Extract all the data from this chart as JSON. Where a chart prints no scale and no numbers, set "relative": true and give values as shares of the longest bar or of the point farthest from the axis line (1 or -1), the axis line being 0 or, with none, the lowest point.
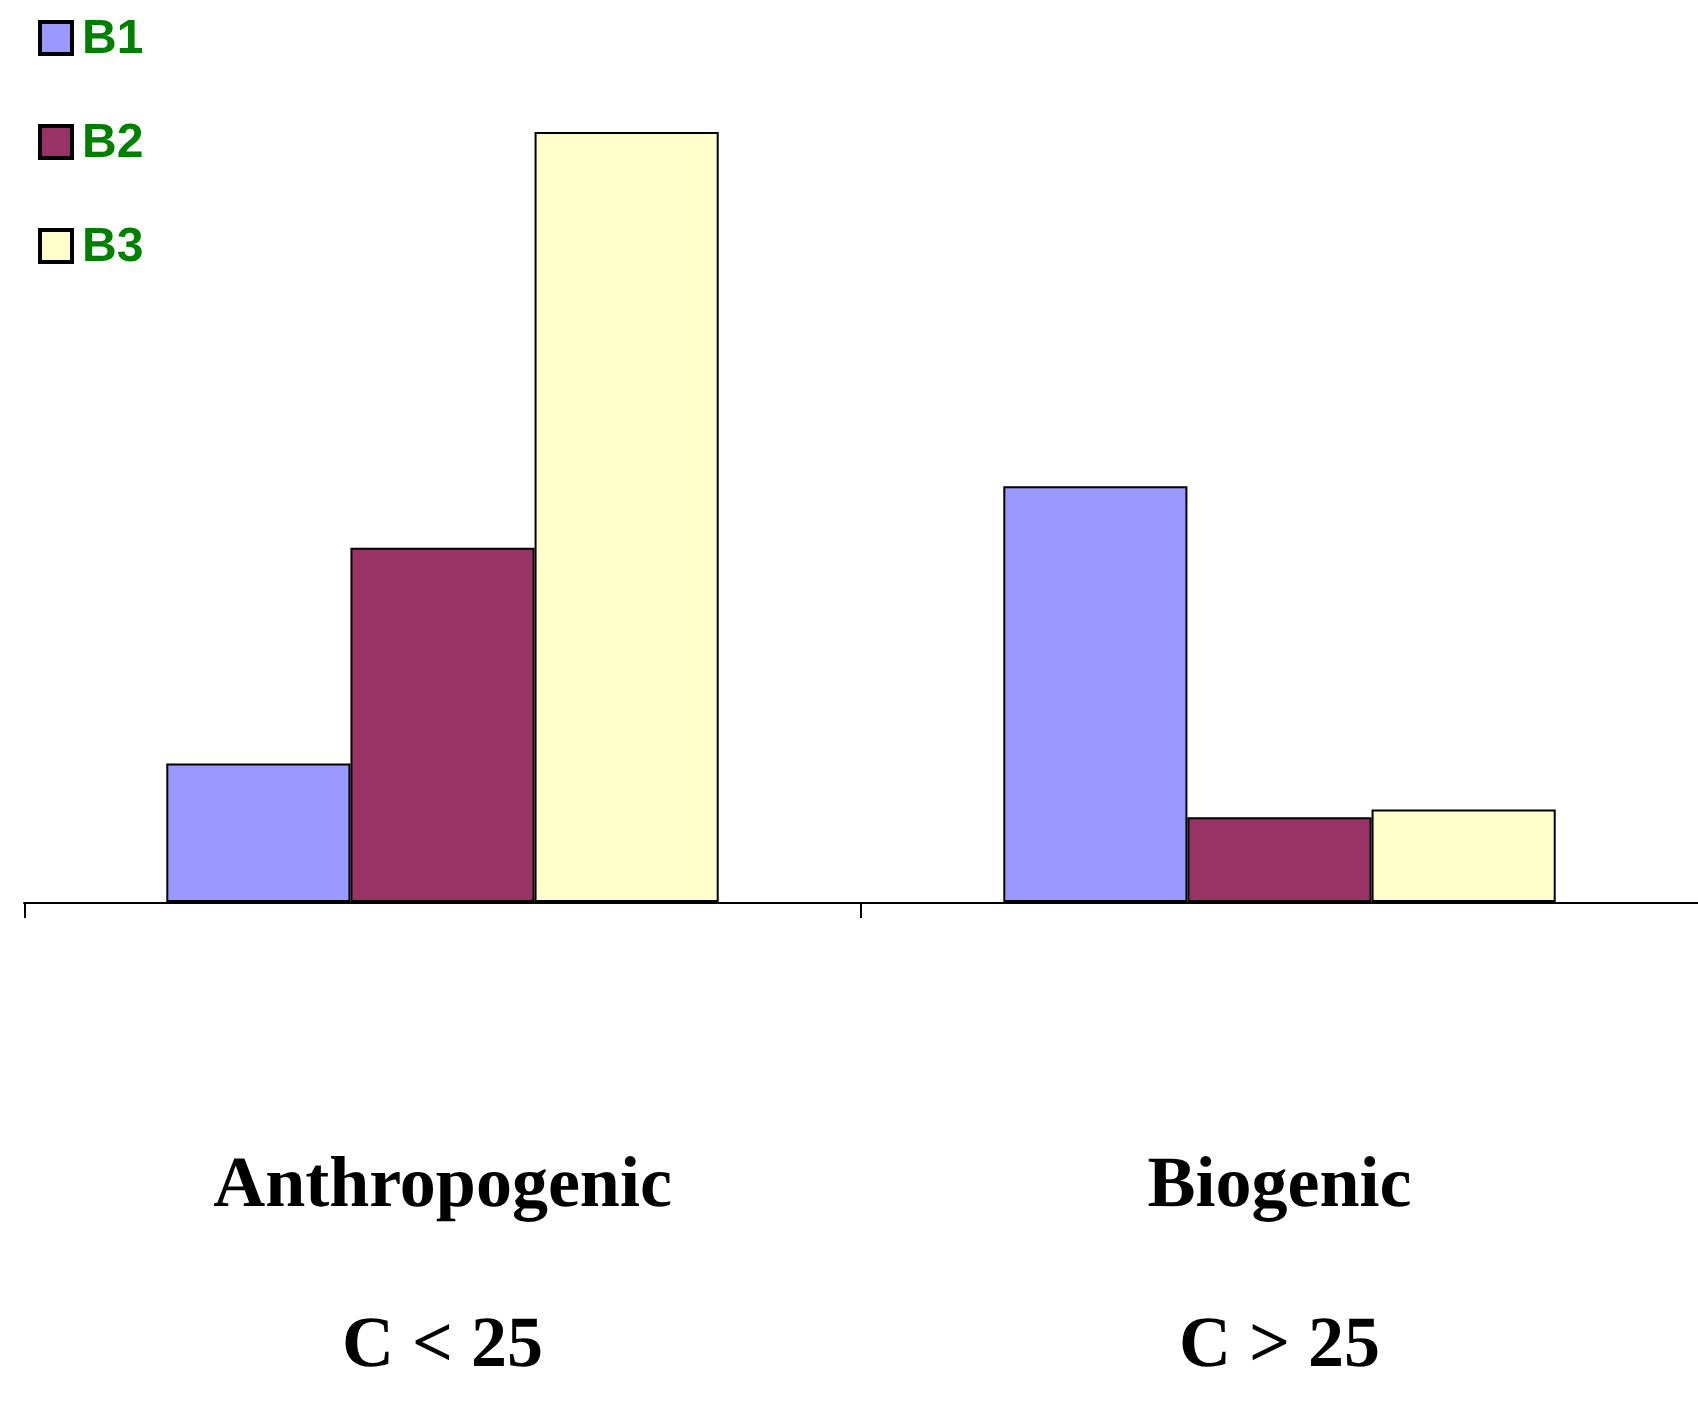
{
  "chart_data": {
    "type": "bar",
    "relative": true,
    "categories": [
      "Anthropogenic\nC < 25",
      "Biogenic\nC > 25"
    ],
    "series": [
      {
        "name": "B1",
        "color": "#9999ff",
        "values": [
          0.18,
          0.54
        ]
      },
      {
        "name": "B2",
        "color": "#993366",
        "values": [
          0.46,
          0.11
        ]
      },
      {
        "name": "B3",
        "color": "#ffffcc",
        "values": [
          1,
          0.12
        ]
      }
    ],
    "legend": "top left"
  }
}
